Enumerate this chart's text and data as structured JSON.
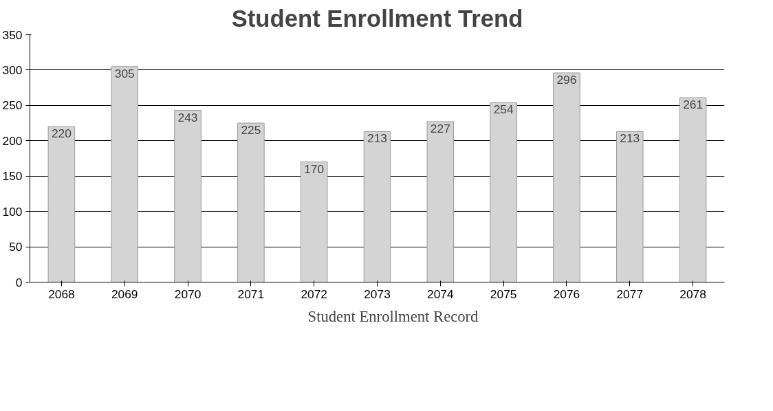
{
  "chart_data": {
    "type": "bar",
    "title": "Student Enrollment Trend",
    "categories": [
      "2068",
      "2069",
      "2070",
      "2071",
      "2072",
      "2073",
      "2074",
      "2075",
      "2076",
      "2077",
      "2078"
    ],
    "series": [
      {
        "name": "Student Enrollment Record",
        "color": "#d4d4d4",
        "values": [
          220,
          305,
          243,
          225,
          170,
          213,
          227,
          254,
          296,
          213,
          261
        ]
      }
    ],
    "ylim": [
      0,
      350
    ],
    "yticks": [
      0,
      50,
      100,
      150,
      200,
      250,
      300,
      350
    ],
    "grid": "y",
    "legend": "bottom",
    "data_labels": true
  }
}
